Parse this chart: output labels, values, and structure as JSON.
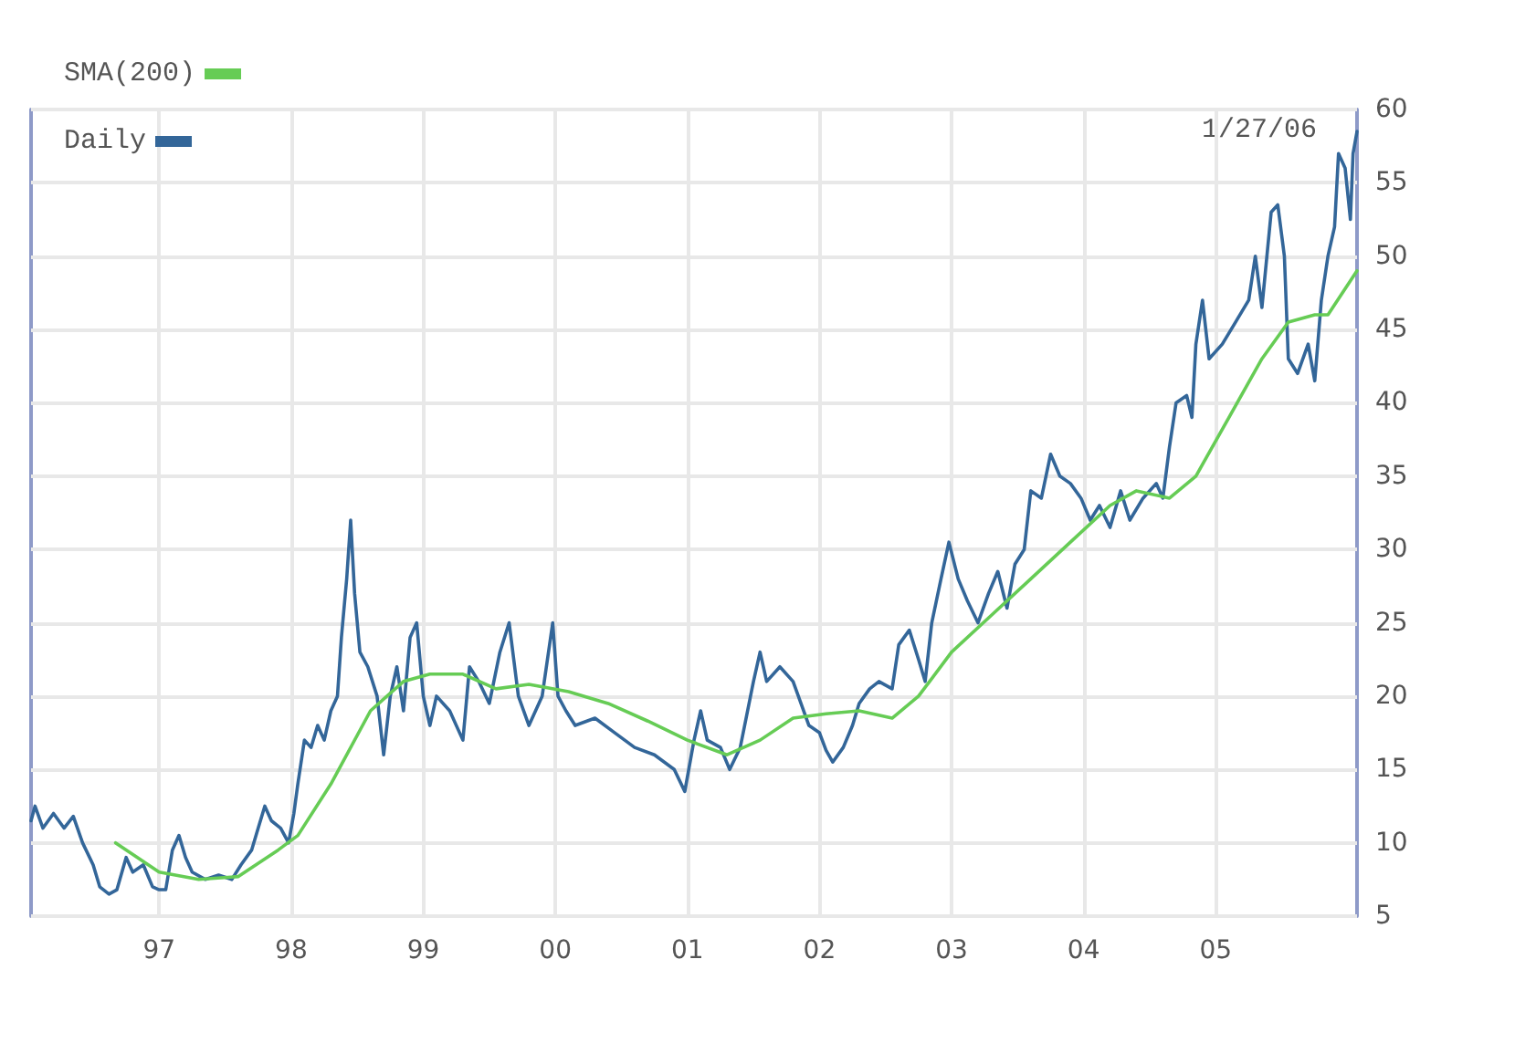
{
  "chart_data": {
    "type": "line",
    "annotations": [
      "1/27/06"
    ],
    "xlim": [
      1996.03,
      2006.07
    ],
    "xticks": [
      {
        "value": 1997,
        "label": "97"
      },
      {
        "value": 1998,
        "label": "98"
      },
      {
        "value": 1999,
        "label": "99"
      },
      {
        "value": 2000,
        "label": "00"
      },
      {
        "value": 2001,
        "label": "01"
      },
      {
        "value": 2002,
        "label": "02"
      },
      {
        "value": 2003,
        "label": "03"
      },
      {
        "value": 2004,
        "label": "04"
      },
      {
        "value": 2005,
        "label": "05"
      }
    ],
    "ylim": [
      5,
      60
    ],
    "yticks": [
      5,
      10,
      15,
      20,
      25,
      30,
      35,
      40,
      45,
      50,
      55,
      60
    ],
    "grid": true,
    "legend": "top left",
    "marker": "none",
    "series": [
      {
        "name": "Daily",
        "color": "#336699",
        "x": [
          1996.03,
          1996.06,
          1996.12,
          1996.2,
          1996.28,
          1996.35,
          1996.42,
          1996.5,
          1996.55,
          1996.62,
          1996.68,
          1996.75,
          1996.8,
          1996.88,
          1996.95,
          1997.0,
          1997.05,
          1997.1,
          1997.15,
          1997.2,
          1997.25,
          1997.35,
          1997.45,
          1997.55,
          1997.62,
          1997.7,
          1997.75,
          1997.8,
          1997.85,
          1997.92,
          1997.98,
          1998.02,
          1998.05,
          1998.1,
          1998.15,
          1998.2,
          1998.25,
          1998.3,
          1998.35,
          1998.38,
          1998.42,
          1998.45,
          1998.48,
          1998.52,
          1998.58,
          1998.65,
          1998.7,
          1998.75,
          1998.8,
          1998.85,
          1998.9,
          1998.95,
          1999.0,
          1999.05,
          1999.1,
          1999.2,
          1999.3,
          1999.35,
          1999.42,
          1999.5,
          1999.58,
          1999.65,
          1999.72,
          1999.8,
          1999.9,
          1999.98,
          2000.02,
          2000.08,
          2000.15,
          2000.3,
          2000.45,
          2000.6,
          2000.75,
          2000.9,
          2000.98,
          2001.05,
          2001.1,
          2001.15,
          2001.25,
          2001.32,
          2001.4,
          2001.5,
          2001.55,
          2001.6,
          2001.7,
          2001.8,
          2001.92,
          2002.0,
          2002.05,
          2002.1,
          2002.18,
          2002.25,
          2002.3,
          2002.38,
          2002.45,
          2002.55,
          2002.6,
          2002.68,
          2002.75,
          2002.8,
          2002.85,
          2002.92,
          2002.98,
          2003.05,
          2003.12,
          2003.2,
          2003.28,
          2003.35,
          2003.42,
          2003.48,
          2003.55,
          2003.6,
          2003.68,
          2003.75,
          2003.82,
          2003.9,
          2003.98,
          2004.05,
          2004.12,
          2004.2,
          2004.28,
          2004.35,
          2004.45,
          2004.55,
          2004.6,
          2004.65,
          2004.7,
          2004.78,
          2004.82,
          2004.85,
          2004.9,
          2004.95,
          2005.05,
          2005.15,
          2005.25,
          2005.3,
          2005.35,
          2005.42,
          2005.47,
          2005.52,
          2005.55,
          2005.62,
          2005.7,
          2005.75,
          2005.8,
          2005.85,
          2005.9,
          2005.93,
          2005.98,
          2006.02,
          2006.04,
          2006.07
        ],
        "values": [
          11.5,
          12.5,
          11,
          12,
          11,
          11.8,
          10,
          8.5,
          7,
          6.5,
          6.8,
          9,
          8,
          8.5,
          7,
          6.8,
          6.8,
          9.5,
          10.5,
          9,
          8,
          7.5,
          7.8,
          7.5,
          8.5,
          9.5,
          11,
          12.5,
          11.5,
          11,
          10,
          12,
          14,
          17,
          16.5,
          18,
          17,
          19,
          20,
          24,
          28,
          32,
          27,
          23,
          22,
          20,
          16,
          20,
          22,
          19,
          24,
          25,
          20,
          18,
          20,
          19,
          17,
          22,
          21,
          19.5,
          23,
          25,
          20,
          18,
          20,
          25,
          20,
          19,
          18,
          18.5,
          17.5,
          16.5,
          16,
          15,
          13.5,
          17,
          19,
          17,
          16.5,
          15,
          16.5,
          21,
          23,
          21,
          22,
          21,
          18,
          17.5,
          16.3,
          15.5,
          16.5,
          18,
          19.5,
          20.5,
          21,
          20.5,
          23.5,
          24.5,
          22.5,
          21,
          25,
          28,
          30.5,
          28,
          26.5,
          25,
          27,
          28.5,
          26,
          29,
          30,
          34,
          33.5,
          36.5,
          35,
          34.5,
          33.5,
          32,
          33,
          31.5,
          34,
          32,
          33.5,
          34.5,
          33.5,
          37,
          40,
          40.5,
          39,
          44,
          47,
          43,
          44,
          45.5,
          47,
          50,
          46.5,
          53,
          53.5,
          50,
          43,
          42,
          44,
          41.5,
          47,
          50,
          52,
          57,
          56,
          52.5,
          57,
          58.5
        ]
      },
      {
        "name": "SMA(200)",
        "color": "#66cc55",
        "x": [
          1996.67,
          1997.0,
          1997.3,
          1997.6,
          1997.9,
          1998.05,
          1998.3,
          1998.6,
          1998.85,
          1999.05,
          1999.3,
          1999.55,
          1999.8,
          2000.1,
          2000.4,
          2000.7,
          2001.0,
          2001.3,
          2001.55,
          2001.8,
          2002.05,
          2002.3,
          2002.55,
          2002.75,
          2003.0,
          2003.3,
          2003.6,
          2003.9,
          2004.2,
          2004.4,
          2004.65,
          2004.85,
          2005.1,
          2005.35,
          2005.55,
          2005.75,
          2005.85,
          2006.07
        ],
        "values": [
          10,
          8,
          7.5,
          7.7,
          9.5,
          10.5,
          14,
          19,
          21,
          21.5,
          21.5,
          20.5,
          20.8,
          20.3,
          19.5,
          18.3,
          17,
          16,
          17,
          18.5,
          18.8,
          19,
          18.5,
          20,
          23,
          25.5,
          28,
          30.5,
          33,
          34,
          33.5,
          35,
          39,
          43,
          45.5,
          46,
          46,
          49
        ]
      }
    ]
  }
}
